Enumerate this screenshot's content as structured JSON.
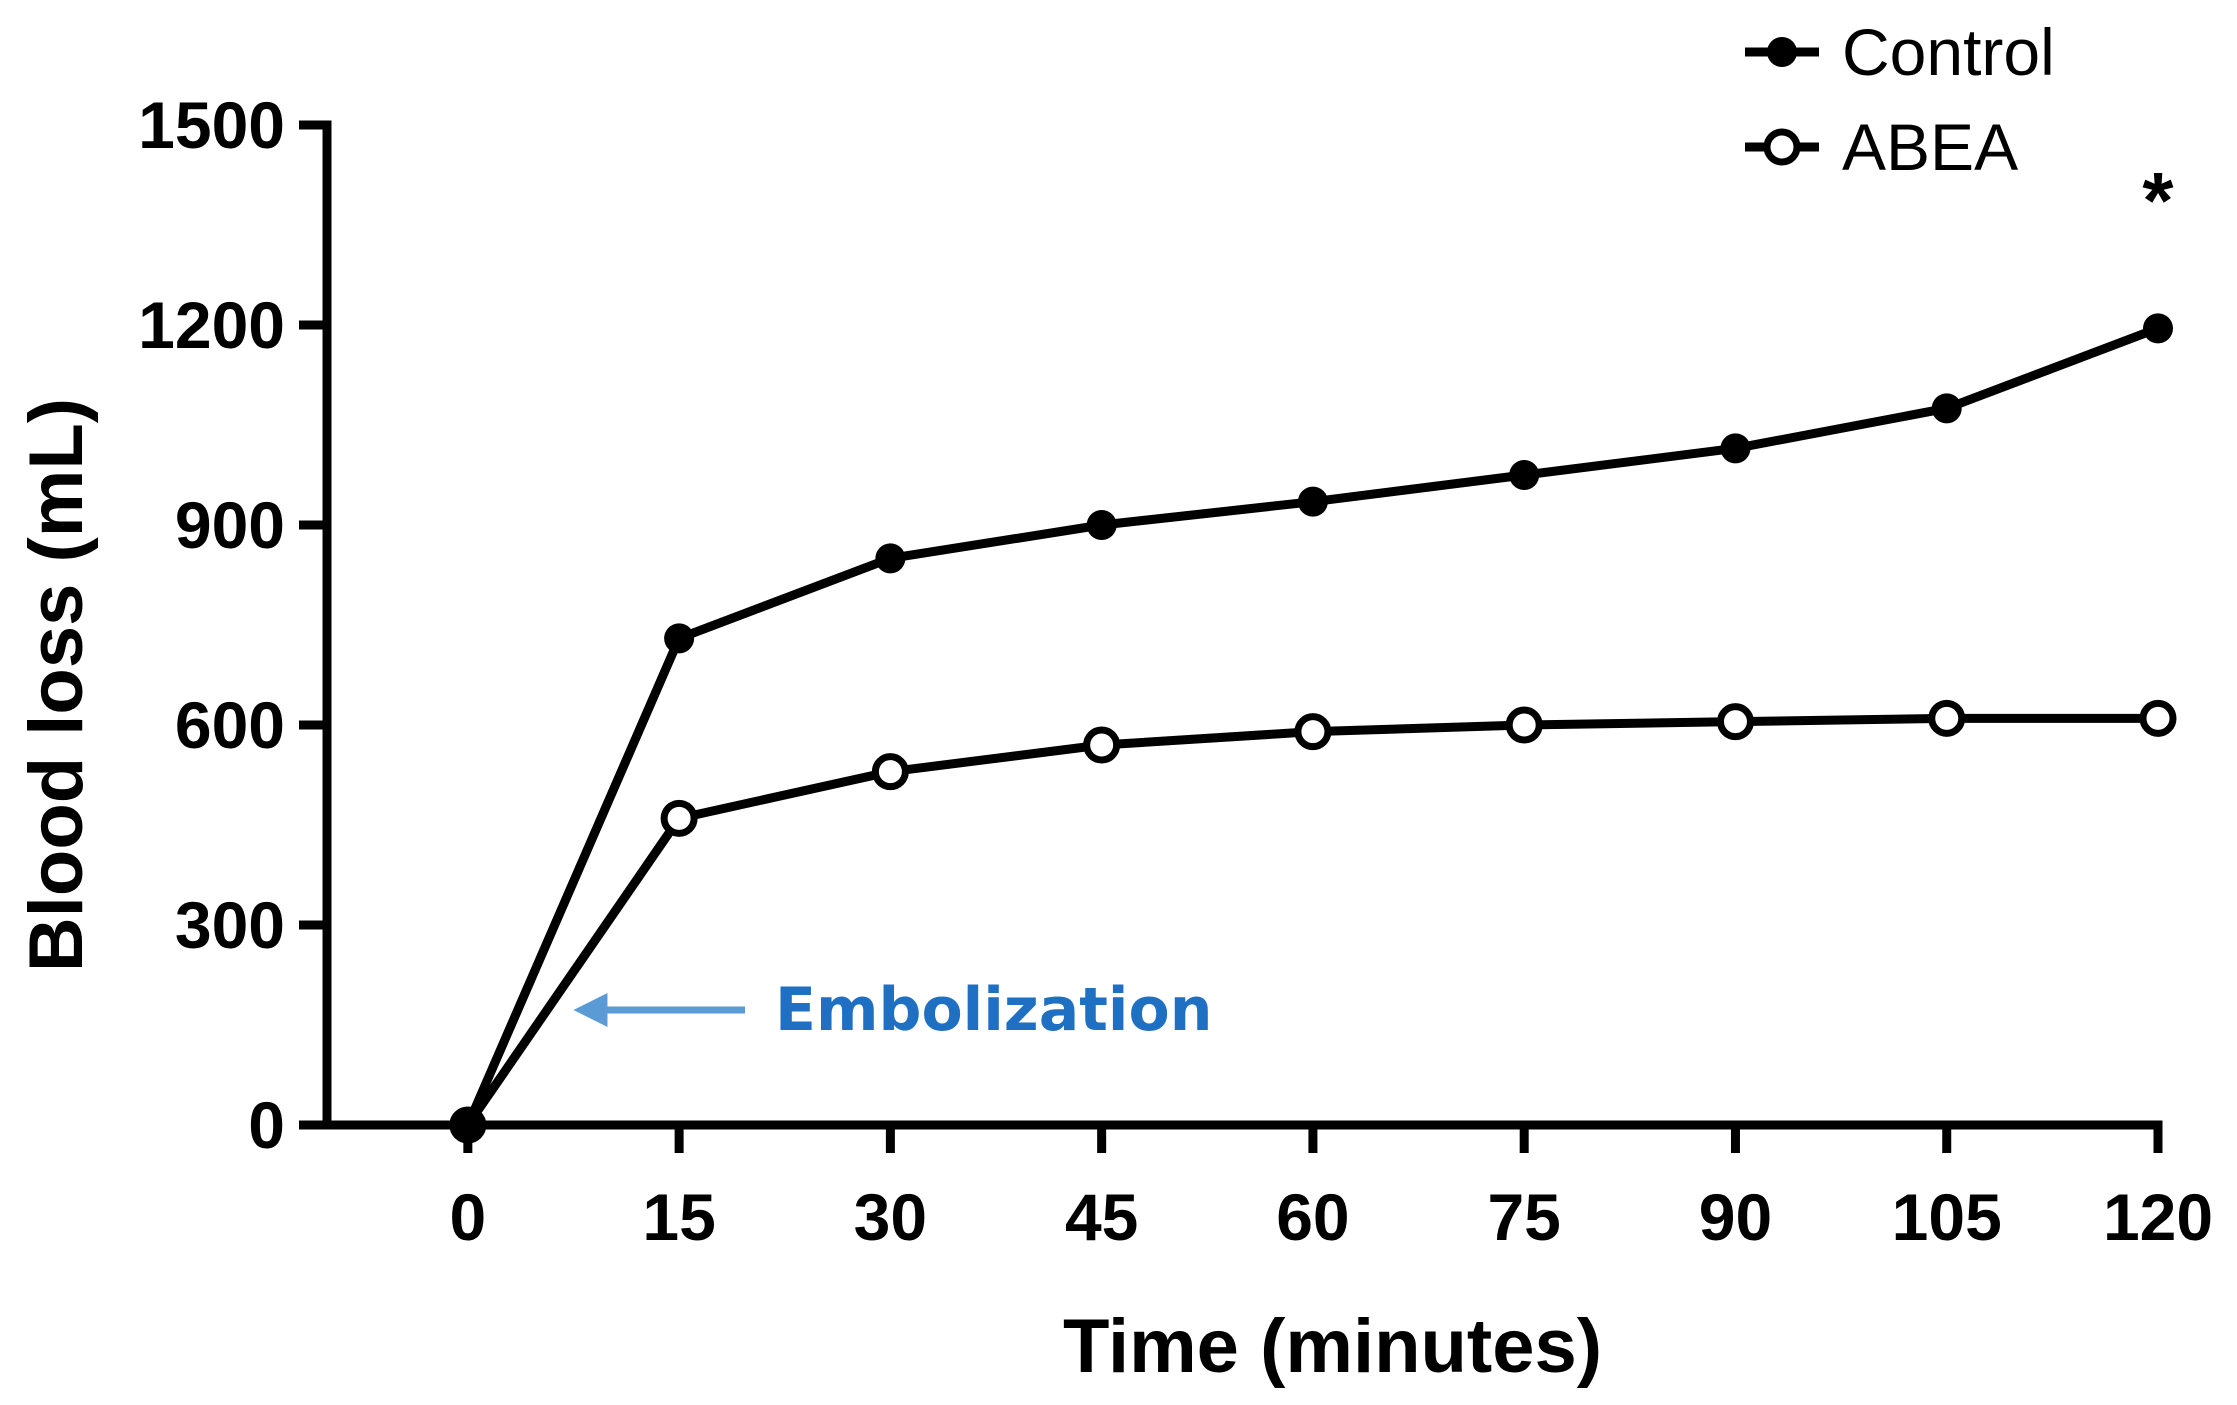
{
  "chart_data": {
    "type": "line",
    "title": "",
    "xlabel": "Time (minutes)",
    "ylabel": "Blood loss (mL)",
    "x": [
      0,
      15,
      30,
      45,
      60,
      75,
      90,
      105,
      120
    ],
    "xlim": [
      -10,
      120
    ],
    "ylim": [
      0,
      1500
    ],
    "xticks": [
      "0",
      "15",
      "30",
      "45",
      "60",
      "75",
      "90",
      "105",
      "120"
    ],
    "yticks": [
      "0",
      "300",
      "600",
      "900",
      "1200",
      "1500"
    ],
    "grid": false,
    "legend_position": "top-right",
    "series": [
      {
        "name": "Control",
        "marker": "filled-circle",
        "values": [
          0,
          730,
          850,
          900,
          935,
          975,
          1015,
          1075,
          1195
        ]
      },
      {
        "name": "ABEA",
        "marker": "open-circle",
        "values": [
          0,
          460,
          530,
          570,
          590,
          600,
          605,
          610,
          610
        ]
      }
    ],
    "annotations": [
      {
        "text": "Embolization",
        "type": "arrow",
        "color": "#1f6fc2",
        "arrow_color": "#5b9bd5",
        "points_to_x": 7.5
      },
      {
        "text": "*",
        "type": "significance",
        "x": 120
      }
    ],
    "colors": {
      "line": "#000000",
      "annotation": "#1f6fc2"
    }
  }
}
